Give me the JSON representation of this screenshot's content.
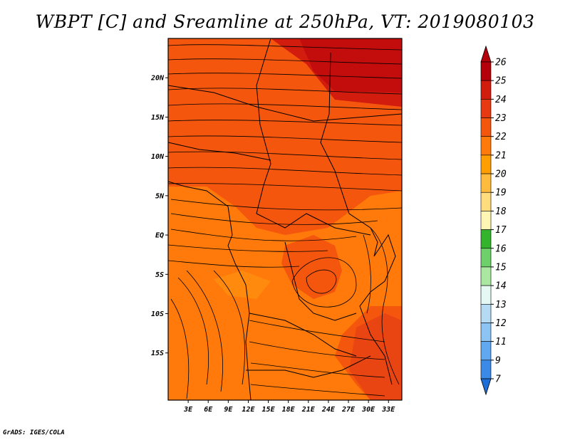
{
  "title": "WBPT [C] and Sreamline at 250hPa, VT: 2019080103",
  "footer": "GrADS: IGES/COLA",
  "map": {
    "lon_range": [
      0,
      35
    ],
    "lat_range": [
      -21,
      25
    ],
    "lat_ticks": [
      "20N",
      "15N",
      "10N",
      "5N",
      "EQ",
      "5S",
      "10S",
      "15S"
    ],
    "lat_tick_values": [
      20,
      15,
      10,
      5,
      0,
      -5,
      -10,
      -15
    ],
    "lon_ticks": [
      "3E",
      "6E",
      "9E",
      "12E",
      "15E",
      "18E",
      "21E",
      "24E",
      "27E",
      "30E",
      "33E"
    ],
    "lon_tick_values": [
      3,
      6,
      9,
      12,
      15,
      18,
      21,
      24,
      27,
      30,
      33
    ]
  },
  "colorbar": {
    "labels": [
      "26",
      "25",
      "24",
      "23",
      "22",
      "21",
      "20",
      "19",
      "18",
      "17",
      "16",
      "15",
      "14",
      "13",
      "12",
      "11",
      "9",
      "7"
    ],
    "colors": [
      "#b4000a",
      "#d21c0e",
      "#e83a12",
      "#f4560e",
      "#ff7a0a",
      "#ff9e00",
      "#ffbb3e",
      "#ffdd7e",
      "#fff5b4",
      "#34b42c",
      "#6ed06a",
      "#aae8a2",
      "#e4f8f4",
      "#b4daf4",
      "#8cc4f4",
      "#60a8f0",
      "#3c8ae8",
      "#1c6ed8"
    ]
  }
}
